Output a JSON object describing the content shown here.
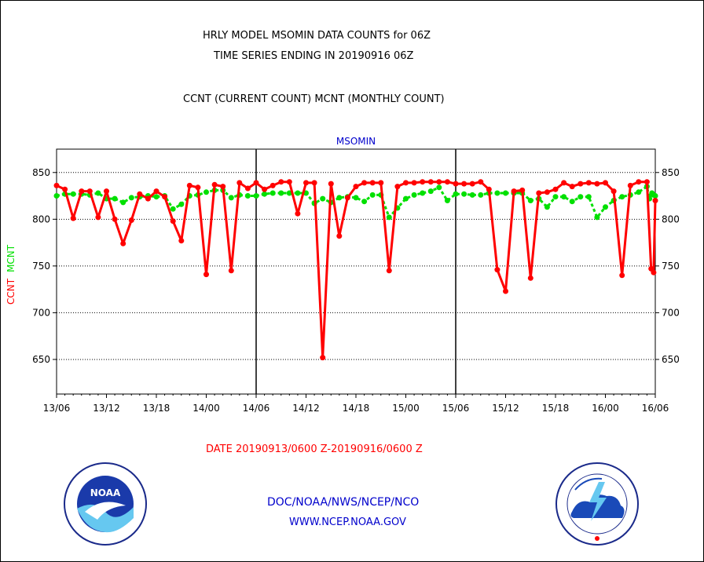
{
  "header": {
    "line1": "HRLY MODEL MSOMIN DATA COUNTS for 06Z",
    "line2": "TIME SERIES ENDING IN 20190916 06Z",
    "line3": "CCNT (CURRENT COUNT) MCNT (MONTHLY COUNT)"
  },
  "footer": {
    "date_range": "DATE 20190913/0600 Z-20190916/0600 Z",
    "org": "DOC/NOAA/NWS/NCEP/NCO",
    "url": "WWW.NCEP.NOAA.GOV"
  },
  "logos": {
    "left": "NOAA",
    "right": "NATIONAL WEATHER SERVICE"
  },
  "colors": {
    "ccnt": "#ff0000",
    "mcnt": "#00e000",
    "axis_title": "#0000cc",
    "grid": "#000000"
  },
  "chart_data": {
    "type": "line",
    "title": "MSOMIN",
    "xlabel": "",
    "ylabel_left": [
      "CCNT",
      "MCNT"
    ],
    "xlim": [
      0,
      72
    ],
    "ylim": [
      613,
      875
    ],
    "yticks": [
      650,
      700,
      750,
      800,
      850
    ],
    "xticks": [
      {
        "x": 0,
        "label": "13/06"
      },
      {
        "x": 6,
        "label": "13/12"
      },
      {
        "x": 12,
        "label": "13/18"
      },
      {
        "x": 18,
        "label": "14/00"
      },
      {
        "x": 24,
        "label": "14/06"
      },
      {
        "x": 30,
        "label": "14/12"
      },
      {
        "x": 36,
        "label": "14/18"
      },
      {
        "x": 42,
        "label": "15/00"
      },
      {
        "x": 48,
        "label": "15/06"
      },
      {
        "x": 54,
        "label": "15/12"
      },
      {
        "x": 60,
        "label": "15/18"
      },
      {
        "x": 66,
        "label": "16/00"
      },
      {
        "x": 72,
        "label": "16/06"
      }
    ],
    "day_separators": [
      24,
      48
    ],
    "grid": true,
    "series": [
      {
        "name": "CCNT",
        "values": [
          836,
          832,
          801,
          830,
          830,
          802,
          830,
          800,
          774,
          799,
          827,
          822,
          830,
          824,
          798,
          777,
          836,
          834,
          741,
          837,
          835,
          745,
          839,
          833,
          839,
          832,
          836,
          840,
          840,
          806,
          839,
          839,
          652,
          838,
          782,
          823,
          835,
          839,
          839,
          839,
          745,
          835,
          839,
          839,
          840,
          840,
          840,
          840,
          838,
          838,
          838,
          840,
          832,
          746,
          723,
          830,
          831,
          737,
          828,
          829,
          832,
          839,
          835,
          838,
          839,
          838,
          839,
          830,
          740,
          836,
          840,
          840,
          747,
          743,
          820
        ],
        "x_values": [
          0,
          1,
          2,
          3,
          4,
          5,
          6,
          7,
          8,
          9,
          10,
          11,
          12,
          13,
          14,
          15,
          16,
          17,
          18,
          19,
          20,
          21,
          22,
          23,
          24,
          25,
          26,
          27,
          28,
          29,
          30,
          31,
          32,
          33,
          34,
          35,
          36,
          37,
          38,
          39,
          40,
          41,
          42,
          43,
          44,
          45,
          46,
          47,
          48,
          49,
          50,
          51,
          52,
          53,
          54,
          55,
          56,
          57,
          58,
          59,
          60,
          61,
          62,
          63,
          64,
          65,
          66,
          67,
          68,
          69,
          70,
          71,
          71.5,
          71.8,
          72
        ]
      },
      {
        "name": "MCNT",
        "values": [
          825,
          827,
          827,
          827,
          826,
          828,
          822,
          822,
          818,
          823,
          824,
          825,
          824,
          825,
          811,
          816,
          825,
          826,
          829,
          831,
          831,
          823,
          826,
          825,
          825,
          827,
          828,
          828,
          828,
          828,
          828,
          817,
          822,
          818,
          823,
          824,
          823,
          819,
          826,
          826,
          802,
          812,
          822,
          826,
          828,
          830,
          834,
          820,
          827,
          827,
          826,
          826,
          828,
          828,
          828,
          828,
          828,
          820,
          822,
          813,
          824,
          824,
          819,
          824,
          824,
          802,
          813,
          820,
          824,
          826,
          829,
          835,
          822,
          828,
          826,
          825
        ],
        "x_values": [
          0,
          1,
          2,
          3,
          4,
          5,
          6,
          7,
          8,
          9,
          10,
          11,
          12,
          13,
          14,
          15,
          16,
          17,
          18,
          19,
          20,
          21,
          22,
          23,
          24,
          25,
          26,
          27,
          28,
          29,
          30,
          31,
          32,
          33,
          34,
          35,
          36,
          37,
          38,
          39,
          40,
          41,
          42,
          43,
          44,
          45,
          46,
          47,
          48,
          49,
          50,
          51,
          52,
          53,
          54,
          55,
          56,
          57,
          58,
          59,
          60,
          61,
          62,
          63,
          64,
          65,
          66,
          67,
          68,
          69,
          70,
          71,
          71.3,
          71.6,
          71.8,
          72
        ]
      }
    ]
  }
}
